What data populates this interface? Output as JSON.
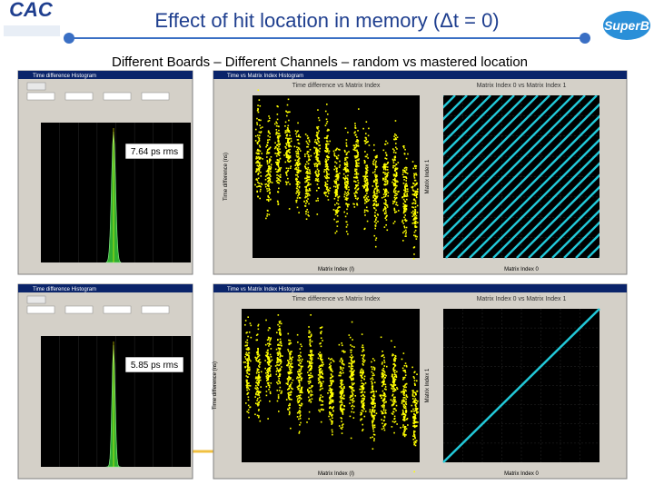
{
  "header": {
    "title": "Effect of hit location in memory (Δt = 0)",
    "subtitle": "Different Boards – Different Channels – random vs mastered location",
    "logo_left": "CAC",
    "logo_right": "SuperB"
  },
  "panels": [
    {
      "histogram_window_title": "Time difference Histogram",
      "annotation": "7.64 ps rms",
      "scatter_window_title": "Time vs Matrix Index Histogram",
      "left_plot_title": "Time difference vs Matrix Index",
      "right_plot_title": "Matrix Index 0 vs Matrix Index 1",
      "left_x_label": "Matrix Index (I)",
      "left_y_label": "Time difference (ns)",
      "right_x_label": "Matrix Index 0",
      "right_y_label": "Matrix Index 1"
    },
    {
      "histogram_window_title": "Time difference Histogram",
      "annotation": "5.85 ps rms",
      "scatter_window_title": "Time vs Matrix Index Histogram",
      "left_plot_title": "Time difference vs Matrix Index",
      "right_plot_title": "Matrix Index 0 vs Matrix Index 1",
      "left_x_label": "Matrix Index (I)",
      "left_y_label": "Time difference (ns)",
      "right_x_label": "Matrix Index 0",
      "right_y_label": "Matrix Index 1"
    }
  ]
}
